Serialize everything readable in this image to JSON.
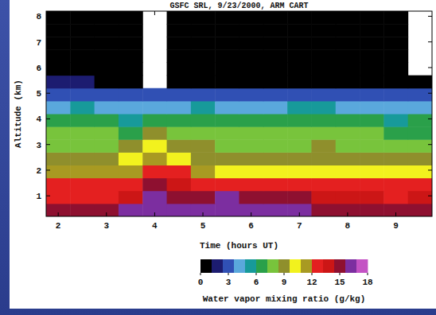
{
  "chart_data": {
    "type": "heatmap",
    "title": "GSFC SRL, 9/23/2000, ARM CART",
    "x_label": "Time (hours UT)",
    "y_label": "Altitude (km)",
    "x": [
      2.0,
      2.5,
      3.0,
      3.5,
      4.0,
      4.5,
      5.0,
      5.5,
      6.0,
      6.5,
      7.0,
      7.5,
      8.0,
      8.5,
      9.0,
      9.5
    ],
    "y": [
      0.45,
      0.95,
      1.45,
      1.95,
      2.45,
      2.95,
      3.45,
      3.95,
      4.45,
      4.95,
      5.45,
      5.95,
      6.45,
      6.95,
      7.45,
      7.95
    ],
    "values": [
      [
        15.0,
        15.2,
        15.4,
        15.8,
        16.2,
        16.4,
        16.0,
        16.2,
        16.0,
        15.8,
        15.6,
        15.4,
        15.2,
        15.0,
        14.8,
        14.6
      ],
      [
        13.0,
        12.9,
        12.8,
        13.2,
        15.8,
        15.0,
        14.8,
        15.6,
        15.2,
        15.0,
        14.8,
        14.0,
        13.6,
        13.4,
        13.0,
        13.2
      ],
      [
        12.8,
        12.6,
        12.5,
        12.8,
        14.6,
        13.6,
        13.0,
        12.8,
        12.6,
        12.5,
        12.4,
        12.6,
        12.4,
        12.3,
        12.2,
        12.4
      ],
      [
        11.2,
        11.0,
        10.8,
        11.5,
        12.8,
        12.0,
        11.4,
        10.6,
        10.4,
        10.2,
        10.0,
        10.2,
        10.0,
        9.9,
        9.8,
        10.0
      ],
      [
        9.4,
        9.3,
        9.1,
        9.6,
        11.0,
        10.2,
        9.4,
        9.0,
        8.8,
        8.7,
        8.9,
        9.0,
        8.8,
        8.6,
        8.5,
        8.6
      ],
      [
        8.2,
        8.3,
        8.1,
        8.6,
        10.0,
        8.8,
        8.4,
        8.2,
        8.0,
        8.1,
        8.3,
        8.4,
        8.2,
        8.0,
        7.9,
        8.0
      ],
      [
        7.3,
        7.4,
        7.2,
        7.0,
        8.8,
        7.6,
        7.5,
        7.3,
        7.2,
        7.3,
        7.6,
        7.7,
        7.4,
        7.2,
        7.0,
        7.1
      ],
      [
        6.2,
        6.3,
        6.0,
        5.8,
        6.0,
        6.1,
        6.4,
        6.2,
        6.0,
        6.2,
        6.5,
        6.6,
        6.3,
        6.1,
        5.8,
        6.0
      ],
      [
        4.6,
        4.8,
        4.6,
        4.4,
        4.5,
        4.6,
        4.8,
        4.5,
        4.4,
        4.6,
        4.8,
        5.0,
        4.7,
        4.5,
        4.3,
        4.5
      ],
      [
        3.0,
        3.2,
        2.8,
        2.6,
        2.6,
        2.8,
        3.0,
        2.7,
        2.6,
        2.8,
        3.2,
        3.4,
        3.0,
        2.8,
        2.6,
        2.9
      ],
      [
        1.5,
        1.2,
        1.0,
        0.8,
        null,
        0.8,
        0.8,
        0.7,
        0.7,
        0.8,
        0.9,
        1.0,
        0.9,
        0.8,
        0.7,
        0.8
      ],
      [
        0.5,
        0.5,
        0.5,
        0.5,
        null,
        0.5,
        0.5,
        0.5,
        0.5,
        0.5,
        0.5,
        0.5,
        0.5,
        0.5,
        0.5,
        null
      ],
      [
        0.3,
        0.3,
        0.3,
        0.3,
        null,
        0.3,
        0.3,
        0.3,
        0.3,
        0.3,
        0.3,
        0.3,
        0.3,
        0.3,
        0.3,
        null
      ],
      [
        0.3,
        0.3,
        0.3,
        0.3,
        null,
        0.3,
        0.3,
        0.3,
        0.3,
        0.3,
        0.3,
        0.3,
        0.3,
        0.3,
        0.3,
        null
      ],
      [
        0.3,
        0.3,
        0.3,
        0.3,
        null,
        0.3,
        0.3,
        0.3,
        0.3,
        0.3,
        0.3,
        0.3,
        0.3,
        0.3,
        0.3,
        null
      ],
      [
        0.3,
        0.3,
        0.3,
        0.3,
        null,
        0.3,
        0.3,
        0.3,
        0.3,
        0.3,
        0.3,
        0.3,
        0.3,
        0.3,
        0.3,
        null
      ]
    ],
    "xlim": [
      1.75,
      9.75
    ],
    "ylim": [
      0.2,
      8.2
    ],
    "xticks": [
      2,
      3,
      4,
      5,
      6,
      7,
      8,
      9
    ],
    "yticks": [
      1,
      2,
      3,
      4,
      5,
      6,
      7,
      8
    ],
    "colorbar": {
      "label": "Water vapor mixing ratio (g/kg)",
      "range": [
        0,
        18
      ],
      "ticks": [
        0,
        3,
        6,
        9,
        12,
        15,
        18
      ],
      "colors": [
        "#000000",
        "#1c1c70",
        "#3050b4",
        "#5aa8dc",
        "#179a9a",
        "#2aa04a",
        "#78c43c",
        "#8f8f2c",
        "#f2f21e",
        "#a89a22",
        "#e42020",
        "#cc1616",
        "#8e1030",
        "#7c2ea0",
        "#c452c4"
      ]
    }
  }
}
